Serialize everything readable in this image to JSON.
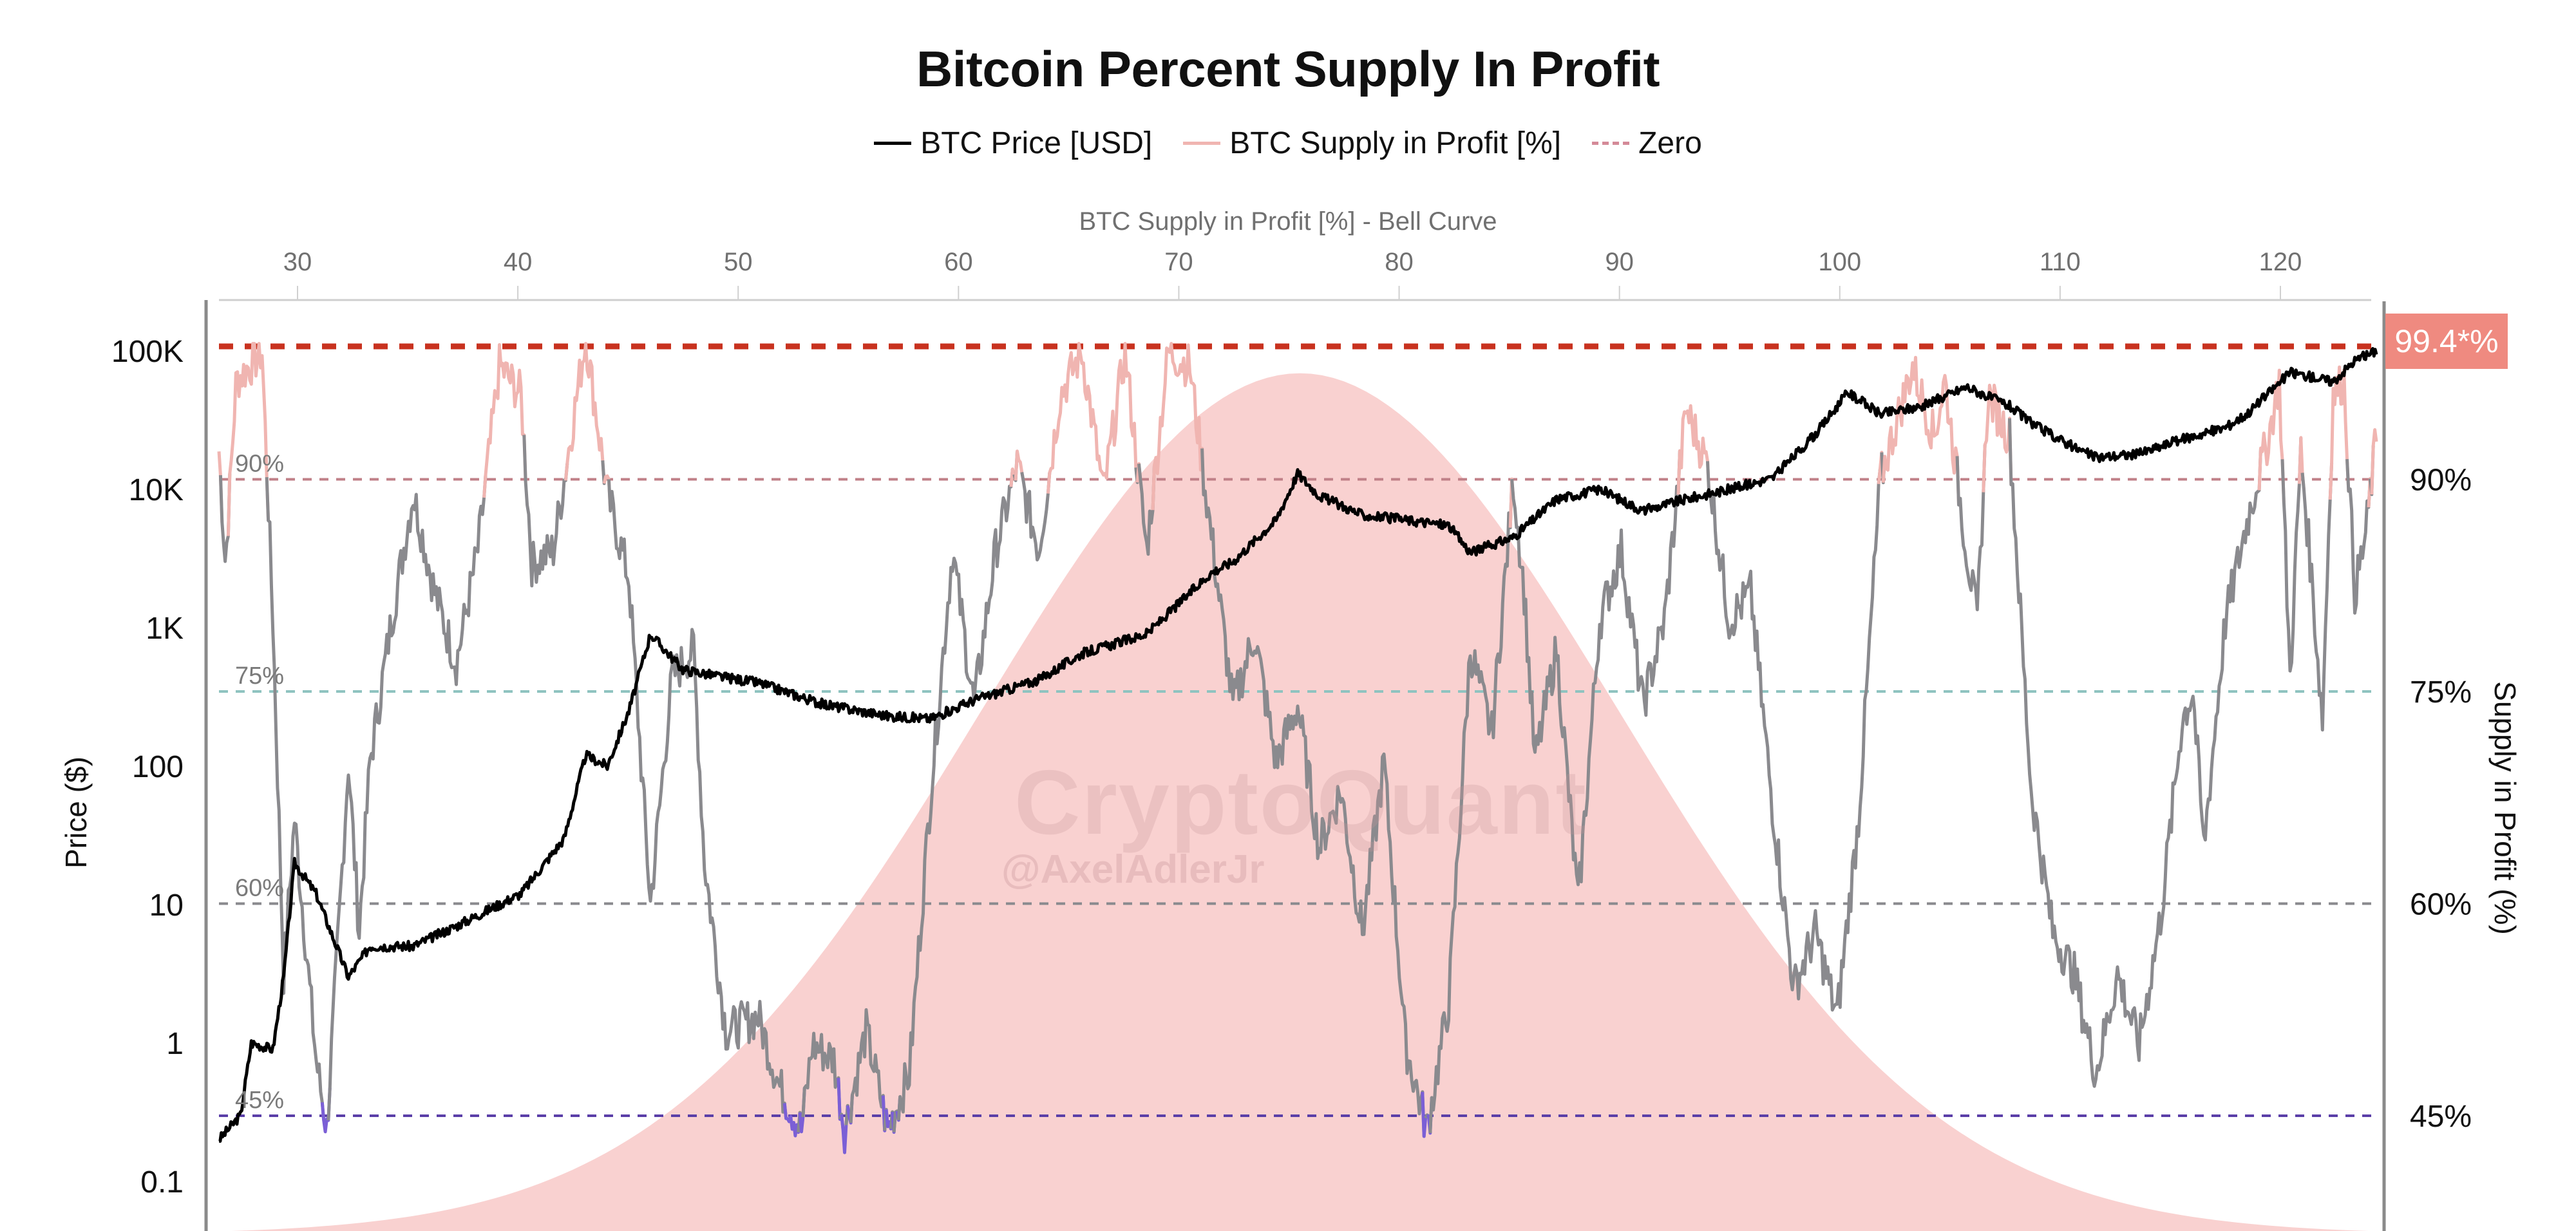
{
  "chart_data": {
    "type": "line",
    "title": "Bitcoin Percent Supply In Profit",
    "legend": {
      "placement": "top-center",
      "entries": [
        {
          "name": "BTC Price [USD]",
          "color": "#000000",
          "style": "solid"
        },
        {
          "name": "BTC Supply in Profit [%]",
          "color": "#f0b5b1",
          "style": "solid"
        },
        {
          "name": "Zero",
          "color": "#d48a98",
          "style": "dashed"
        }
      ]
    },
    "top_axis": {
      "label": "BTC Supply in Profit [%] - Bell Curve",
      "ticks": [
        "30",
        "40",
        "50",
        "60",
        "70",
        "80",
        "90",
        "100",
        "110",
        "120"
      ],
      "range": [
        25.6,
        124.2
      ]
    },
    "left_axis": {
      "label": "Price ($)",
      "scale": "log",
      "ticks": [
        "0.1",
        "1",
        "10",
        "100",
        "1K",
        "10K",
        "100K"
      ],
      "range": [
        0.05,
        300000
      ]
    },
    "right_axis": {
      "label": "Supply in Profit (%)",
      "ticks": [
        "45%",
        "60%",
        "75%",
        "90%"
      ],
      "range": [
        37,
        103
      ]
    },
    "reference_lines": [
      {
        "value": 99.4,
        "label": "99.4*%",
        "color": "#c8321f"
      },
      {
        "value": 90,
        "label": "90%",
        "color": "#c08088"
      },
      {
        "value": 75,
        "label": "75%",
        "color": "#8fc3c0"
      },
      {
        "value": 60,
        "label": "60%",
        "color": "#8a8a8e"
      },
      {
        "value": 45,
        "label": "45%",
        "color": "#5b3fa8"
      }
    ],
    "bell_curve": {
      "mean": 75.5,
      "sd": 14.5,
      "peak_pct": 97.5,
      "color": "#f9d1d0"
    },
    "series": [
      {
        "name": "BTC Price [USD]",
        "axis": "left",
        "color": "#000000",
        "points": [
          [
            0,
            0.2
          ],
          [
            0.01,
            0.3
          ],
          [
            0.015,
            1
          ],
          [
            0.025,
            0.9
          ],
          [
            0.03,
            3
          ],
          [
            0.035,
            20
          ],
          [
            0.045,
            12
          ],
          [
            0.06,
            3
          ],
          [
            0.07,
            5
          ],
          [
            0.09,
            5
          ],
          [
            0.11,
            7
          ],
          [
            0.14,
            12
          ],
          [
            0.16,
            30
          ],
          [
            0.17,
            120
          ],
          [
            0.18,
            100
          ],
          [
            0.19,
            250
          ],
          [
            0.2,
            900
          ],
          [
            0.215,
            500
          ],
          [
            0.23,
            450
          ],
          [
            0.25,
            400
          ],
          [
            0.28,
            280
          ],
          [
            0.31,
            230
          ],
          [
            0.33,
            220
          ],
          [
            0.35,
            300
          ],
          [
            0.38,
            420
          ],
          [
            0.4,
            650
          ],
          [
            0.43,
            900
          ],
          [
            0.46,
            2500
          ],
          [
            0.47,
            3000
          ],
          [
            0.49,
            6000
          ],
          [
            0.5,
            13000
          ],
          [
            0.51,
            9000
          ],
          [
            0.53,
            6500
          ],
          [
            0.55,
            6000
          ],
          [
            0.57,
            5500
          ],
          [
            0.58,
            3500
          ],
          [
            0.6,
            4500
          ],
          [
            0.62,
            8500
          ],
          [
            0.64,
            10000
          ],
          [
            0.66,
            7000
          ],
          [
            0.68,
            8500
          ],
          [
            0.7,
            10000
          ],
          [
            0.72,
            12000
          ],
          [
            0.74,
            25000
          ],
          [
            0.755,
            50000
          ],
          [
            0.77,
            35000
          ],
          [
            0.79,
            40000
          ],
          [
            0.81,
            55000
          ],
          [
            0.83,
            40000
          ],
          [
            0.84,
            30000
          ],
          [
            0.86,
            20000
          ],
          [
            0.87,
            17000
          ],
          [
            0.89,
            18000
          ],
          [
            0.91,
            23000
          ],
          [
            0.93,
            28000
          ],
          [
            0.94,
            35000
          ],
          [
            0.96,
            70000
          ],
          [
            0.97,
            65000
          ],
          [
            0.98,
            60000
          ],
          [
            0.99,
            85000
          ],
          [
            1.0,
            100000
          ]
        ]
      },
      {
        "name": "BTC Supply in Profit [%]",
        "axis": "right",
        "color_above_90": "#f0b5b1",
        "color_mid": "#8a8a8e",
        "color_below_45": "#7b5fd6",
        "points": [
          [
            0,
            92
          ],
          [
            0.003,
            84
          ],
          [
            0.008,
            97
          ],
          [
            0.02,
            99
          ],
          [
            0.025,
            80
          ],
          [
            0.03,
            55
          ],
          [
            0.035,
            66
          ],
          [
            0.045,
            49
          ],
          [
            0.05,
            44
          ],
          [
            0.06,
            70
          ],
          [
            0.065,
            58
          ],
          [
            0.07,
            70
          ],
          [
            0.08,
            80
          ],
          [
            0.09,
            89
          ],
          [
            0.1,
            82
          ],
          [
            0.11,
            77
          ],
          [
            0.12,
            85
          ],
          [
            0.13,
            98
          ],
          [
            0.14,
            96
          ],
          [
            0.145,
            84
          ],
          [
            0.155,
            85
          ],
          [
            0.17,
            100
          ],
          [
            0.18,
            89
          ],
          [
            0.19,
            83
          ],
          [
            0.2,
            60
          ],
          [
            0.21,
            76
          ],
          [
            0.22,
            78
          ],
          [
            0.225,
            63
          ],
          [
            0.235,
            51
          ],
          [
            0.25,
            52
          ],
          [
            0.26,
            47
          ],
          [
            0.27,
            44
          ],
          [
            0.275,
            50
          ],
          [
            0.285,
            49
          ],
          [
            0.29,
            44
          ],
          [
            0.3,
            51
          ],
          [
            0.31,
            44
          ],
          [
            0.32,
            48
          ],
          [
            0.33,
            68
          ],
          [
            0.34,
            85
          ],
          [
            0.35,
            74
          ],
          [
            0.36,
            85
          ],
          [
            0.37,
            91
          ],
          [
            0.38,
            85
          ],
          [
            0.39,
            96
          ],
          [
            0.4,
            99
          ],
          [
            0.41,
            89
          ],
          [
            0.42,
            99
          ],
          [
            0.43,
            85
          ],
          [
            0.44,
            99
          ],
          [
            0.45,
            98
          ],
          [
            0.46,
            86
          ],
          [
            0.47,
            74
          ],
          [
            0.48,
            79
          ],
          [
            0.49,
            70
          ],
          [
            0.5,
            74
          ],
          [
            0.51,
            64
          ],
          [
            0.52,
            68
          ],
          [
            0.53,
            58
          ],
          [
            0.54,
            70
          ],
          [
            0.55,
            50
          ],
          [
            0.56,
            44
          ],
          [
            0.57,
            53
          ],
          [
            0.58,
            78
          ],
          [
            0.59,
            72
          ],
          [
            0.6,
            90
          ],
          [
            0.605,
            82
          ],
          [
            0.61,
            70
          ],
          [
            0.62,
            78
          ],
          [
            0.63,
            60
          ],
          [
            0.64,
            80
          ],
          [
            0.65,
            85
          ],
          [
            0.66,
            74
          ],
          [
            0.67,
            80
          ],
          [
            0.68,
            95
          ],
          [
            0.69,
            91
          ],
          [
            0.7,
            80
          ],
          [
            0.71,
            82
          ],
          [
            0.72,
            67
          ],
          [
            0.73,
            54
          ],
          [
            0.74,
            58
          ],
          [
            0.75,
            52
          ],
          [
            0.76,
            66
          ],
          [
            0.77,
            90
          ],
          [
            0.785,
            98
          ],
          [
            0.795,
            93
          ],
          [
            0.8,
            97
          ],
          [
            0.81,
            85
          ],
          [
            0.815,
            80
          ],
          [
            0.82,
            96
          ],
          [
            0.83,
            93
          ],
          [
            0.84,
            68
          ],
          [
            0.85,
            58
          ],
          [
            0.86,
            55
          ],
          [
            0.87,
            48
          ],
          [
            0.88,
            55
          ],
          [
            0.89,
            50
          ],
          [
            0.9,
            59
          ],
          [
            0.91,
            73
          ],
          [
            0.915,
            75
          ],
          [
            0.92,
            64
          ],
          [
            0.93,
            80
          ],
          [
            0.94,
            87
          ],
          [
            0.95,
            93
          ],
          [
            0.955,
            97
          ],
          [
            0.96,
            76
          ],
          [
            0.965,
            92
          ],
          [
            0.97,
            83
          ],
          [
            0.975,
            73
          ],
          [
            0.98,
            96
          ],
          [
            0.985,
            97
          ],
          [
            0.99,
            82
          ],
          [
            0.995,
            86
          ],
          [
            1.0,
            93
          ]
        ]
      }
    ],
    "annotations": [
      "CryptoQuant",
      "@AxelAdlerJr"
    ]
  }
}
